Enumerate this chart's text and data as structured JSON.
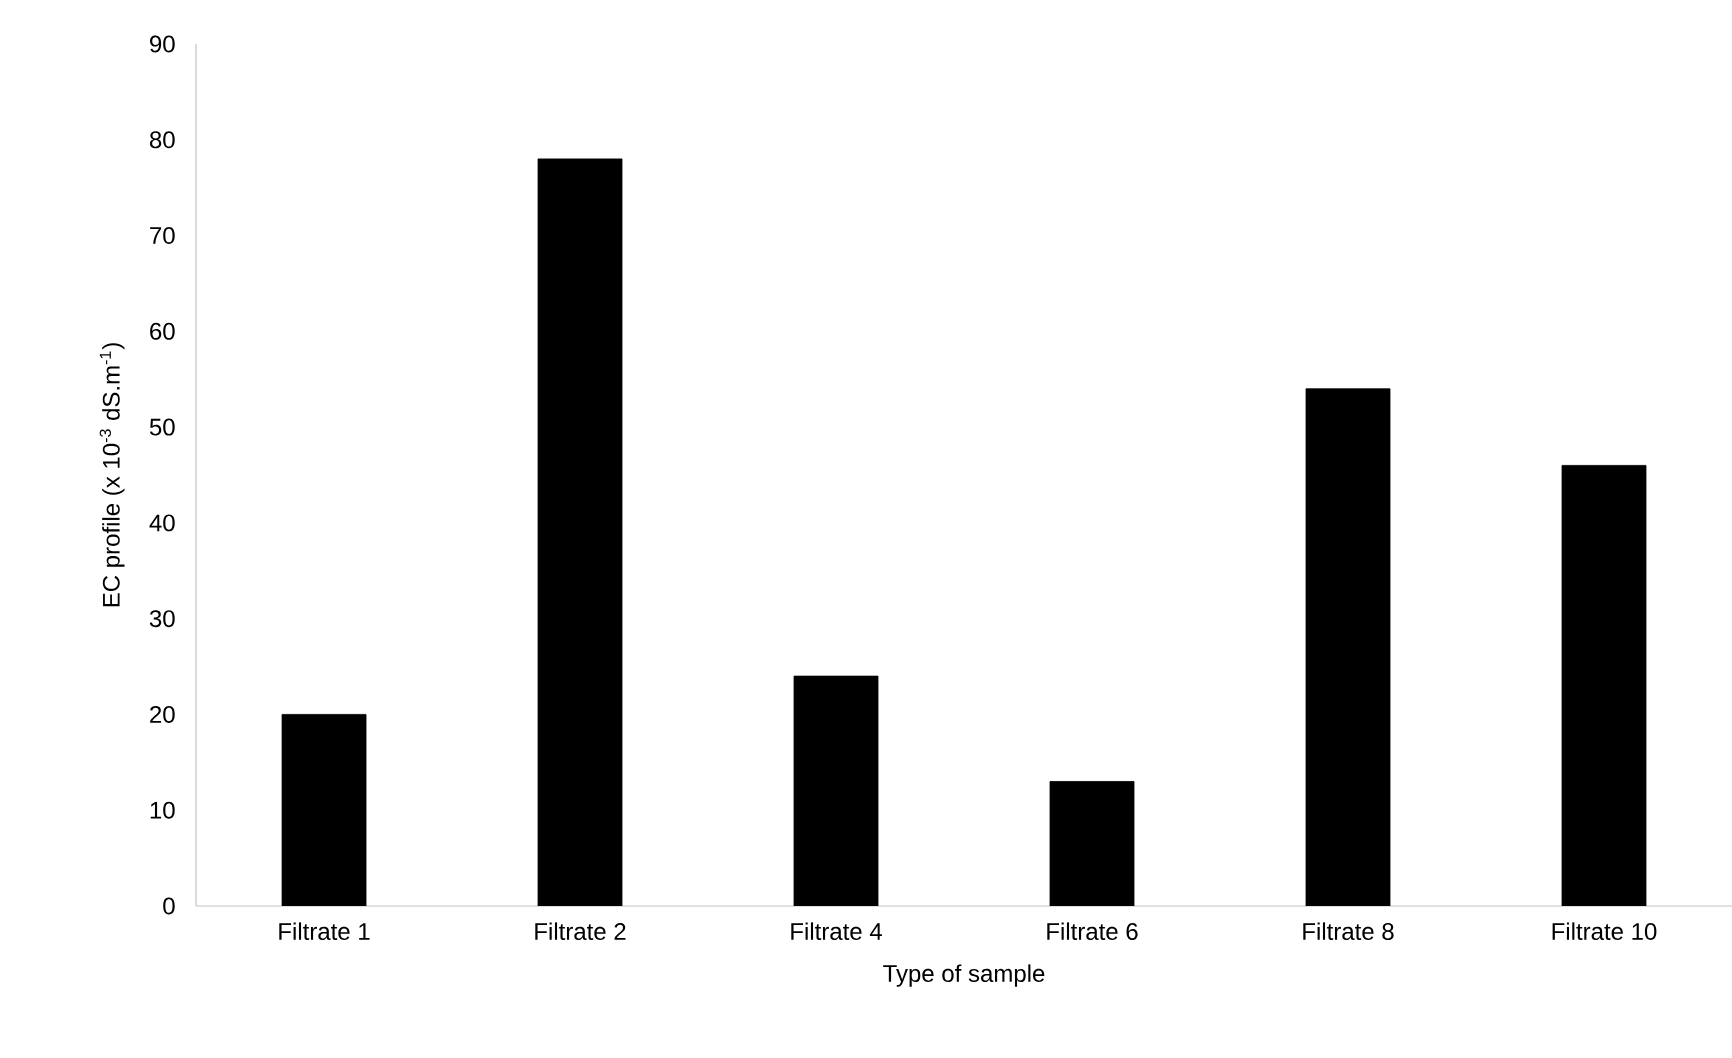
{
  "chart_data": {
    "type": "bar",
    "xlabel": "Type of sample",
    "ylabel": "EC profile  (x 10$^{-3}$ dS.m$^{-1}$)",
    "categories": [
      "Filtrate 1",
      "Filtrate 2",
      "Filtrate 4",
      "Filtrate 6",
      "Filtrate 8",
      "Filtrate 10"
    ],
    "values": [
      20,
      78,
      24,
      13,
      54,
      46
    ],
    "color": "#000000",
    "ylim": [
      0,
      90
    ],
    "yticks": [
      0,
      10,
      20,
      30,
      40,
      50,
      60,
      70,
      80,
      90
    ],
    "grid": false
  }
}
